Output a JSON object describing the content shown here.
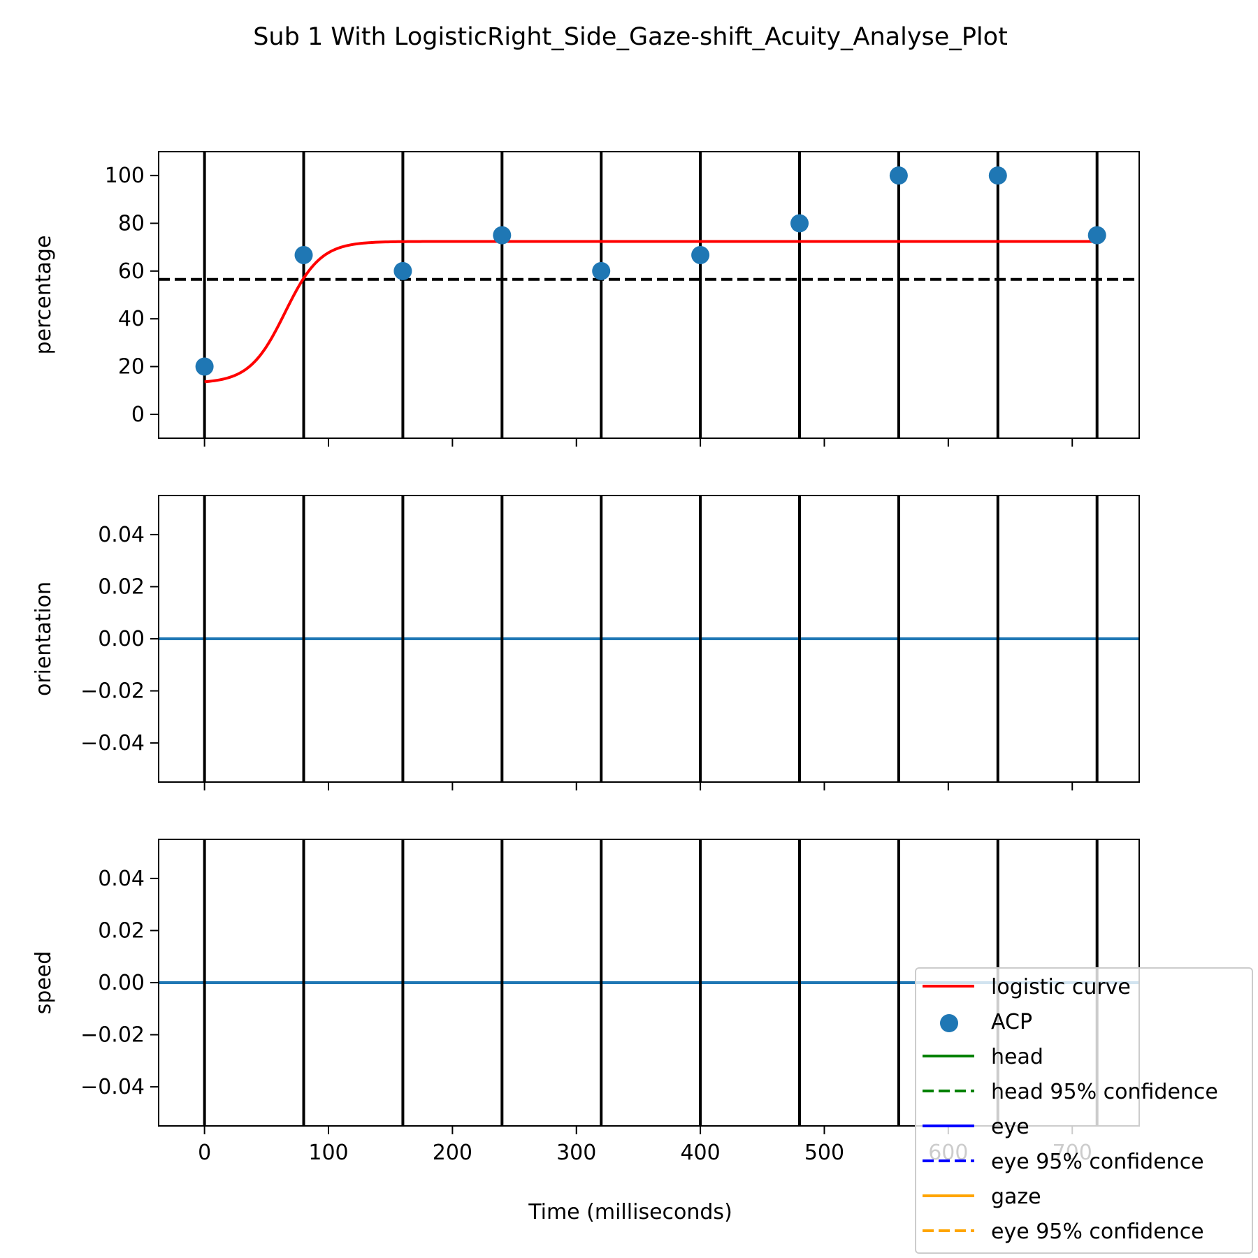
{
  "figure": {
    "title": "Sub 1 With LogisticRight_Side_Gaze-shift_Acuity_Analyse_Plot",
    "xlabel": "Time (milliseconds)",
    "colors": {
      "scatter": "#1f77b4",
      "logistic": "#ff0000",
      "threshold": "#000000",
      "vlines": "#000000",
      "flat_line": "#1f77b4",
      "head": "#008000",
      "eye": "#0000ff",
      "gaze": "#ffa500"
    }
  },
  "chart_data": [
    {
      "type": "scatter",
      "ylabel": "percentage",
      "xlim": [
        -37,
        754
      ],
      "ylim": [
        -10,
        110
      ],
      "xticks": [
        0,
        100,
        200,
        300,
        400,
        500,
        600,
        700
      ],
      "yticks": [
        0,
        20,
        40,
        60,
        80,
        100
      ],
      "ytick_labels": [
        "0",
        "20",
        "40",
        "60",
        "80",
        "100"
      ],
      "vlines": [
        0,
        80,
        160,
        240,
        320,
        400,
        480,
        560,
        640,
        720
      ],
      "threshold": 56.5,
      "points": {
        "name": "ACP",
        "x": [
          0,
          80,
          160,
          240,
          320,
          400,
          480,
          560,
          640,
          720
        ],
        "y": [
          20,
          66.7,
          60,
          75,
          60,
          66.7,
          80,
          100,
          100,
          75
        ]
      },
      "logistic": {
        "name": "logistic curve",
        "lower": 13,
        "upper": 72.4,
        "midpoint": 65,
        "steepness": 0.07,
        "x_range": [
          0,
          720
        ]
      }
    },
    {
      "type": "line",
      "ylabel": "orientation",
      "xlim": [
        -37,
        754
      ],
      "ylim": [
        -0.055,
        0.055
      ],
      "xticks": [
        0,
        100,
        200,
        300,
        400,
        500,
        600,
        700
      ],
      "yticks": [
        -0.04,
        -0.02,
        0.0,
        0.02,
        0.04
      ],
      "ytick_labels": [
        "−0.04",
        "−0.02",
        "0.00",
        "0.02",
        "0.04"
      ],
      "vlines": [
        0,
        80,
        160,
        240,
        320,
        400,
        480,
        560,
        640,
        720
      ],
      "line": {
        "x": [
          -37,
          754
        ],
        "y": [
          0,
          0
        ]
      }
    },
    {
      "type": "line",
      "ylabel": "speed",
      "xlim": [
        -37,
        754
      ],
      "ylim": [
        -0.055,
        0.055
      ],
      "xticks": [
        0,
        100,
        200,
        300,
        400,
        500,
        600,
        700
      ],
      "xtick_labels": [
        "0",
        "100",
        "200",
        "300",
        "400",
        "500",
        "600",
        "700"
      ],
      "yticks": [
        -0.04,
        -0.02,
        0.0,
        0.02,
        0.04
      ],
      "ytick_labels": [
        "−0.04",
        "−0.02",
        "0.00",
        "0.02",
        "0.04"
      ],
      "vlines": [
        0,
        80,
        160,
        240,
        320,
        400,
        480,
        560,
        640,
        720
      ],
      "line": {
        "x": [
          -37,
          754
        ],
        "y": [
          0,
          0
        ]
      }
    }
  ],
  "legend": {
    "placement": "lower-right",
    "entries": [
      {
        "label": "logistic curve",
        "kind": "line",
        "style": "solid",
        "color": "#ff0000"
      },
      {
        "label": "ACP",
        "kind": "marker",
        "style": "dot",
        "color": "#1f77b4"
      },
      {
        "label": "head",
        "kind": "line",
        "style": "solid",
        "color": "#008000"
      },
      {
        "label": "head 95% confidence",
        "kind": "line",
        "style": "dashed",
        "color": "#008000"
      },
      {
        "label": "eye",
        "kind": "line",
        "style": "solid",
        "color": "#0000ff"
      },
      {
        "label": "eye 95% confidence",
        "kind": "line",
        "style": "dashed",
        "color": "#0000ff"
      },
      {
        "label": "gaze",
        "kind": "line",
        "style": "solid",
        "color": "#ffa500"
      },
      {
        "label": "eye 95% confidence",
        "kind": "line",
        "style": "dashed",
        "color": "#ffa500"
      }
    ]
  }
}
